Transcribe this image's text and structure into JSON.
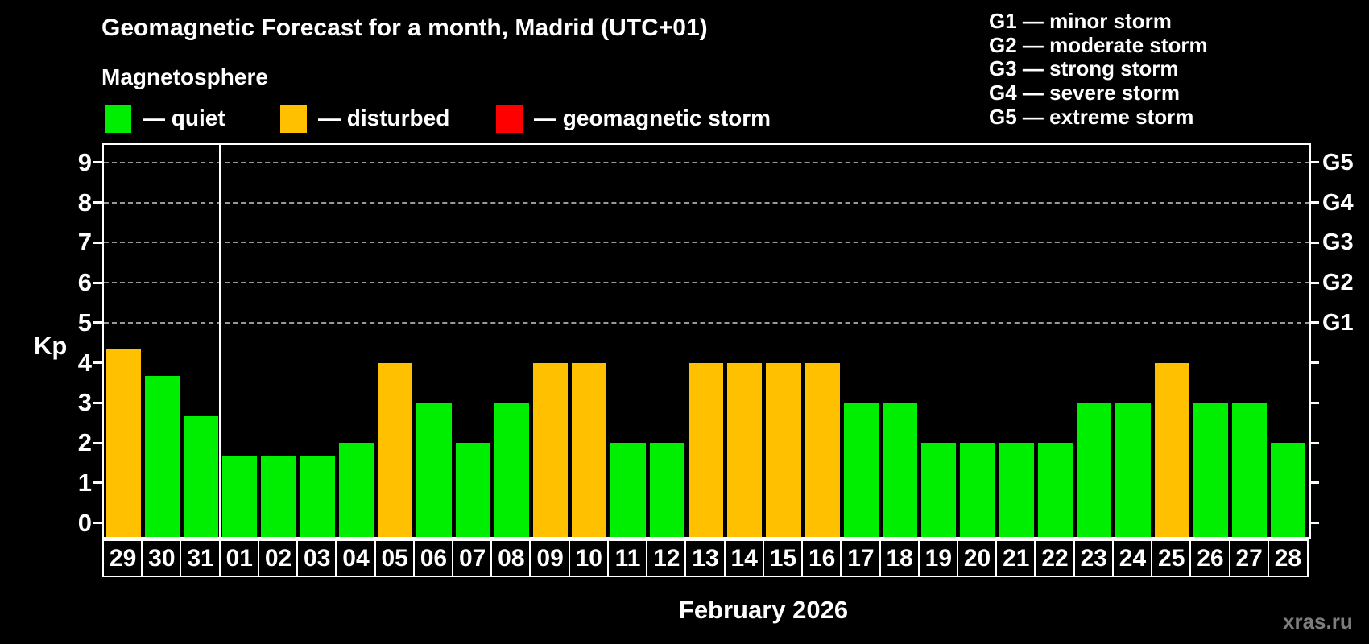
{
  "subtitle": "Magnetosphere",
  "legend": {
    "items": [
      {
        "key": "quiet",
        "label": "— quiet"
      },
      {
        "key": "disturbed",
        "label": "— disturbed"
      },
      {
        "key": "storm",
        "label": "— geomagnetic storm"
      }
    ]
  },
  "g_legend": [
    "G1 — minor storm",
    "G2 — moderate storm",
    "G3 — strong storm",
    "G4 — severe storm",
    "G5 — extreme storm"
  ],
  "colors": {
    "quiet": "#00ee00",
    "disturbed": "#ffc000",
    "storm": "#ff0000",
    "grid": "#999999",
    "axis": "#ffffff"
  },
  "watermark": "xras.ru",
  "chart_data": {
    "type": "bar",
    "title": "Geomagnetic Forecast for a month, Madrid (UTC+01)",
    "xlabel": "February 2026",
    "ylabel": "Kp",
    "ylim": [
      0,
      9
    ],
    "y_ticks": [
      "0",
      "1",
      "2",
      "3",
      "4",
      "5",
      "6",
      "7",
      "8",
      "9"
    ],
    "right_axis": [
      {
        "kp": 5,
        "label": "G1"
      },
      {
        "kp": 6,
        "label": "G2"
      },
      {
        "kp": 7,
        "label": "G3"
      },
      {
        "kp": 8,
        "label": "G4"
      },
      {
        "kp": 9,
        "label": "G5"
      }
    ],
    "gridlines_at_kp": [
      5,
      6,
      7,
      8,
      9
    ],
    "categories": [
      "29",
      "30",
      "31",
      "01",
      "02",
      "03",
      "04",
      "05",
      "06",
      "07",
      "08",
      "09",
      "10",
      "11",
      "12",
      "13",
      "14",
      "15",
      "16",
      "17",
      "18",
      "19",
      "20",
      "21",
      "22",
      "23",
      "24",
      "25",
      "26",
      "27",
      "28"
    ],
    "values": [
      4.33,
      3.67,
      2.67,
      1.67,
      1.67,
      1.67,
      2,
      4,
      3,
      2,
      3,
      4,
      4,
      2,
      2,
      4,
      4,
      4,
      4,
      3,
      3,
      2,
      2,
      2,
      2,
      3,
      3,
      4,
      3,
      3,
      2
    ],
    "statuses": [
      "disturbed",
      "quiet",
      "quiet",
      "quiet",
      "quiet",
      "quiet",
      "quiet",
      "disturbed",
      "quiet",
      "quiet",
      "quiet",
      "disturbed",
      "disturbed",
      "quiet",
      "quiet",
      "disturbed",
      "disturbed",
      "disturbed",
      "disturbed",
      "quiet",
      "quiet",
      "quiet",
      "quiet",
      "quiet",
      "quiet",
      "quiet",
      "quiet",
      "disturbed",
      "quiet",
      "quiet",
      "quiet"
    ],
    "separator_after_index": 2
  }
}
